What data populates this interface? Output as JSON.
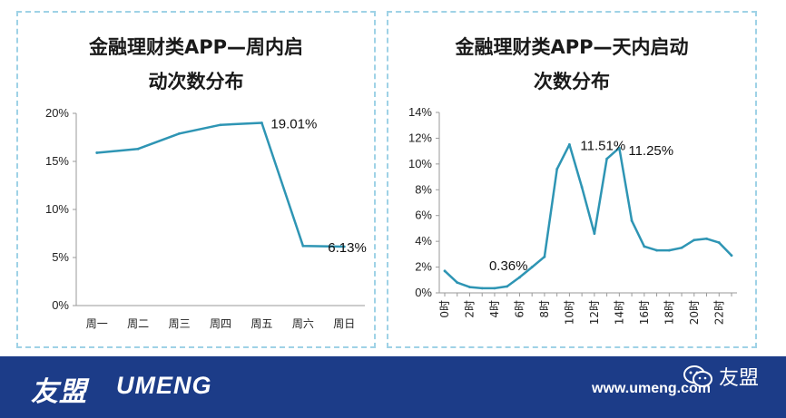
{
  "chart_data": [
    {
      "type": "line",
      "title_line1": "金融理财类APP—周内启",
      "title_line2": "动次数分布",
      "categories": [
        "周一",
        "周二",
        "周三",
        "周四",
        "周五",
        "周六",
        "周日"
      ],
      "values": [
        15.9,
        16.3,
        17.9,
        18.8,
        19.01,
        6.2,
        6.13
      ],
      "ylim": [
        0,
        20
      ],
      "yticks": [
        "0%",
        "5%",
        "10%",
        "15%",
        "20%"
      ],
      "ytick_values": [
        0,
        5,
        10,
        15,
        20
      ],
      "annotations": [
        {
          "index": 4,
          "text": "19.01%"
        },
        {
          "index": 6,
          "text": "6.13%"
        }
      ],
      "color": "#2e95b4",
      "grid": false
    },
    {
      "type": "line",
      "title_line1": "金融理财类APP—天内启动",
      "title_line2": "次数分布",
      "categories": [
        "0时",
        "1时",
        "2时",
        "3时",
        "4时",
        "5时",
        "6时",
        "7时",
        "8时",
        "9时",
        "10时",
        "11时",
        "12时",
        "13时",
        "14时",
        "15时",
        "16时",
        "17时",
        "18时",
        "19时",
        "20时",
        "21时",
        "22时",
        "23时"
      ],
      "tick_labels": [
        "0时",
        "2时",
        "4时",
        "6时",
        "8时",
        "10时",
        "12时",
        "14时",
        "16时",
        "18时",
        "20时",
        "22时"
      ],
      "values": [
        1.7,
        0.8,
        0.45,
        0.36,
        0.36,
        0.5,
        1.2,
        2.0,
        2.8,
        9.6,
        11.51,
        8.2,
        4.6,
        10.4,
        11.25,
        5.6,
        3.6,
        3.3,
        3.3,
        3.5,
        4.1,
        4.2,
        3.9,
        2.9
      ],
      "ylim": [
        0,
        14
      ],
      "yticks": [
        "0%",
        "2%",
        "4%",
        "6%",
        "8%",
        "10%",
        "12%",
        "14%"
      ],
      "ytick_values": [
        0,
        2,
        4,
        6,
        8,
        10,
        12,
        14
      ],
      "annotations": [
        {
          "index": 4,
          "text": "0.36%"
        },
        {
          "index": 10,
          "text": "11.51%"
        },
        {
          "index": 14,
          "text": "11.25%"
        }
      ],
      "color": "#2e95b4",
      "grid": false
    }
  ],
  "footer": {
    "logo_cn": "友盟",
    "logo_en": "UMENG",
    "website": "www.umeng.com",
    "wechat_name": "友盟",
    "wechat_icon": "wechat-icon",
    "background": "#1c3c88"
  }
}
